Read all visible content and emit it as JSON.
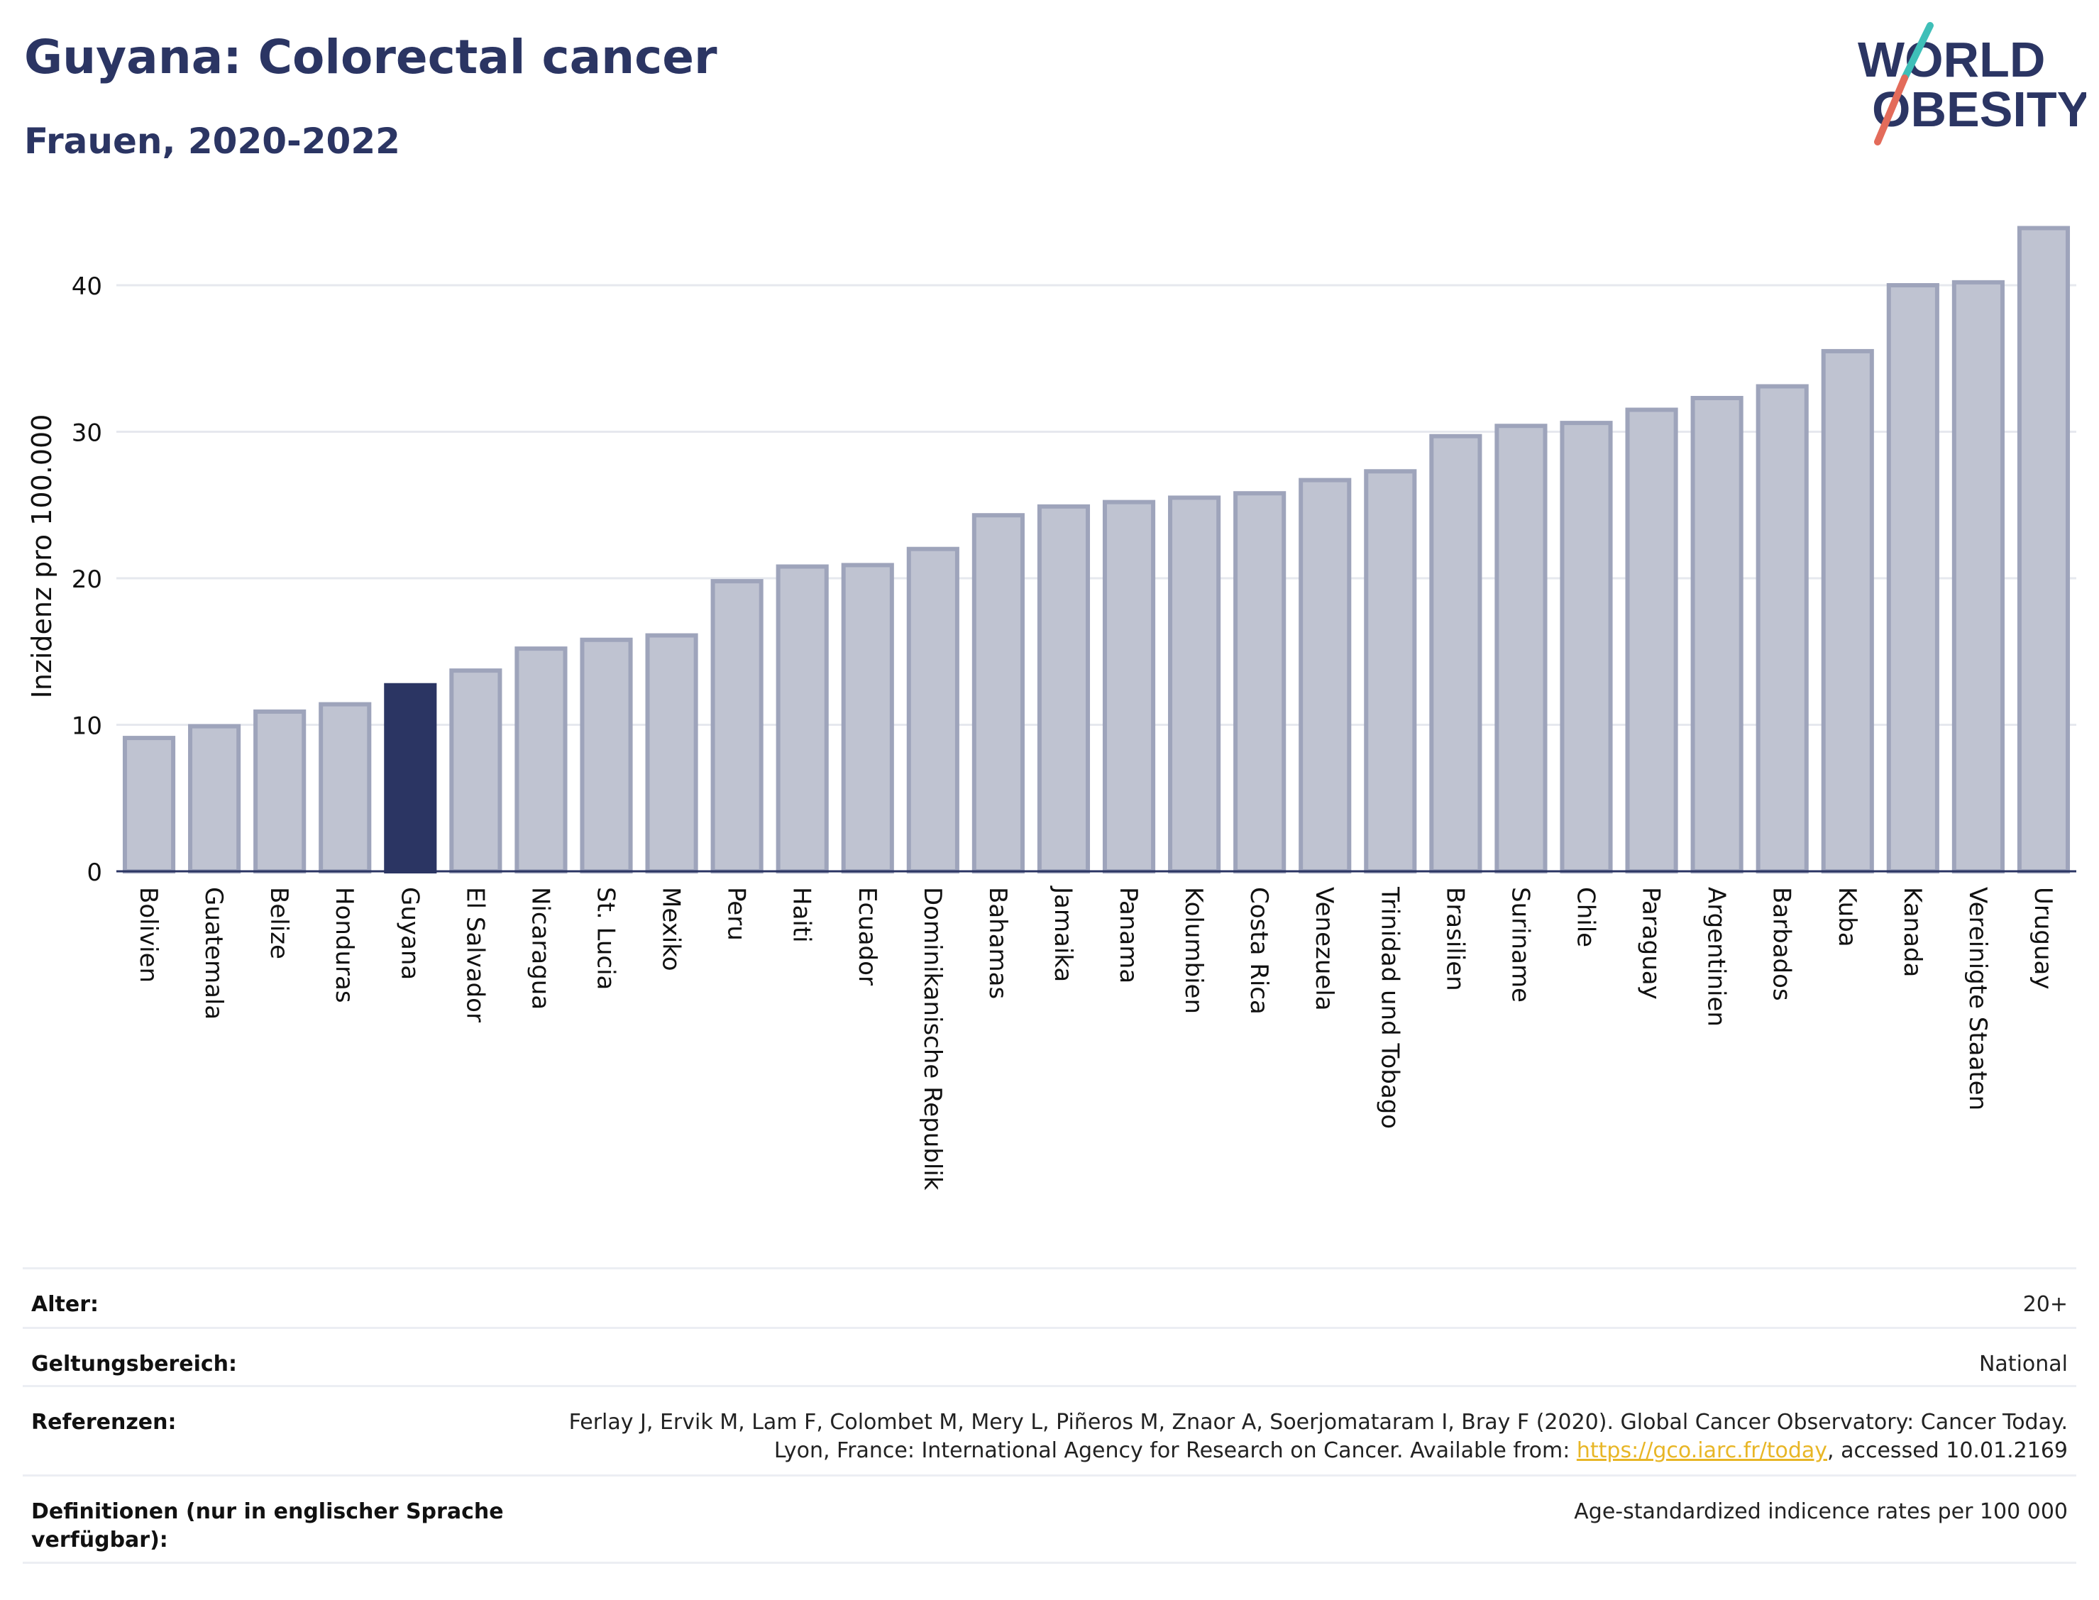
{
  "header": {
    "title": "Guyana: Colorectal cancer",
    "subtitle": "Frauen, 2020-2022"
  },
  "logo": {
    "line1": "WORLD",
    "line2": "OBESITY",
    "accent_colors": [
      "#3fbfb8",
      "#e36b5a"
    ]
  },
  "colors": {
    "highlight": "#2b3563",
    "bar_fill": "#bfc3d1",
    "bar_stroke": "#9ea4bb",
    "grid": "#e6e8ee",
    "axis": "#2b3563"
  },
  "chart_data": {
    "type": "bar",
    "ylabel": "Inzidenz pro 100.000",
    "ylim": [
      0,
      45
    ],
    "yticks": [
      0,
      10,
      20,
      30,
      40
    ],
    "grid": true,
    "highlight_category": "Guyana",
    "categories": [
      "Bolivien",
      "Guatemala",
      "Belize",
      "Honduras",
      "Guyana",
      "El Salvador",
      "Nicaragua",
      "St. Lucia",
      "Mexiko",
      "Peru",
      "Haiti",
      "Ecuador",
      "Dominikanische Republik",
      "Bahamas",
      "Jamaika",
      "Panama",
      "Kolumbien",
      "Costa Rica",
      "Venezuela",
      "Trinidad und Tobago",
      "Brasilien",
      "Suriname",
      "Chile",
      "Paraguay",
      "Argentinien",
      "Barbados",
      "Kuba",
      "Kanada",
      "Vereinigte Staaten",
      "Uruguay"
    ],
    "values": [
      9.1,
      9.9,
      10.9,
      11.4,
      12.7,
      13.7,
      15.2,
      15.8,
      16.1,
      19.8,
      20.8,
      20.9,
      22.0,
      24.3,
      24.9,
      25.2,
      25.5,
      25.8,
      26.7,
      27.3,
      29.7,
      30.4,
      30.6,
      31.5,
      32.3,
      33.1,
      35.5,
      40.0,
      40.2,
      43.9
    ]
  },
  "meta": {
    "rows": [
      {
        "label": "Alter:",
        "value": "20+"
      },
      {
        "label": "Geltungsbereich:",
        "value": "National"
      },
      {
        "label": "Referenzen:",
        "value_before": "Ferlay J, Ervik M, Lam F, Colombet M, Mery L, Piñeros M, Znaor A, Soerjomataram I, Bray F (2020). Global Cancer Observatory: Cancer Today. Lyon, France: International Agency for Research on Cancer. Available from: ",
        "link": "https://gco.iarc.fr/today",
        "value_after": ", accessed 10.01.2169"
      },
      {
        "label": "Definitionen (nur in englischer Sprache verfügbar):",
        "value": "Age-standardized indicence rates per 100 000"
      }
    ]
  }
}
